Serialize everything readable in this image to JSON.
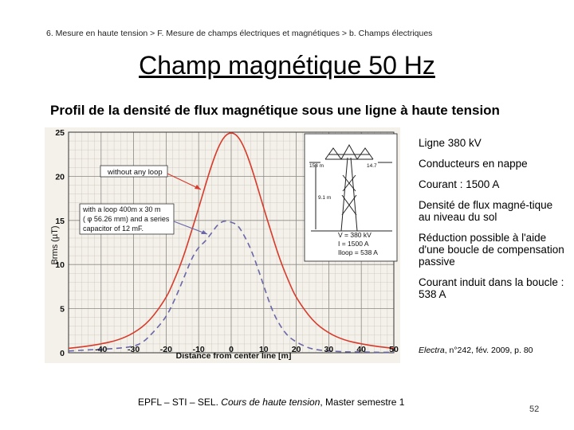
{
  "breadcrumb": "6. Mesure en haute tension > F. Mesure de champs électriques et magnétiques > b. Champs électriques",
  "title": "Champ magnétique 50 Hz",
  "subtitle": "Profil de la densité de flux magnétique sous une ligne à haute tension",
  "side_items": [
    "Ligne 380 kV",
    "Conducteurs en nappe",
    "Courant : 1500 A",
    "Densité de flux magné-tique au niveau du sol",
    "Réduction possible à l'aide d'une boucle de compensation passive",
    "Courant induit dans la boucle : 538 A"
  ],
  "citation": {
    "journal": "Electra",
    "rest": ", n°242, fév. 2009, p. 80"
  },
  "footer": {
    "prefix": "EPFL – STI – SEL. ",
    "course": "Cours de haute tension",
    "suffix": ", Master semestre 1"
  },
  "page_number": "52",
  "chart_data": {
    "type": "line",
    "xlabel": "Distance from center line [m]",
    "ylabel": "Brms (µT)",
    "xlim": [
      -50,
      50
    ],
    "ylim": [
      0,
      25
    ],
    "x_ticks": [
      "-40",
      "-30",
      "-20",
      "-10",
      "0",
      "10",
      "20",
      "30",
      "40",
      "50"
    ],
    "y_ticks": [
      "0",
      "5",
      "10",
      "15",
      "20",
      "25"
    ],
    "grid": true,
    "series": [
      {
        "name": "without any loop",
        "color": "#d83a2a",
        "style": "solid",
        "x": [
          -50,
          -45,
          -40,
          -35,
          -30,
          -25,
          -20,
          -18,
          -15,
          -12,
          -10,
          -8,
          -6,
          -4,
          -2,
          0,
          2,
          4,
          6,
          8,
          10,
          12,
          15,
          18,
          20,
          25,
          30,
          35,
          40,
          45,
          50
        ],
        "y": [
          0.5,
          0.7,
          1.0,
          1.4,
          2.2,
          3.6,
          6.2,
          7.8,
          10.5,
          14.0,
          16.4,
          18.9,
          21.3,
          23.3,
          24.6,
          25.0,
          24.6,
          23.3,
          21.3,
          18.9,
          16.4,
          14.0,
          10.5,
          7.8,
          6.2,
          3.6,
          2.2,
          1.4,
          1.0,
          0.7,
          0.5
        ]
      },
      {
        "name": "with a loop 400m x 30 m (φ 56.26 mm) and a series capacitor of 12 mF.",
        "color": "#6a67a8",
        "style": "dashed",
        "x": [
          -50,
          -45,
          -40,
          -35,
          -30,
          -27,
          -24,
          -20,
          -17,
          -14,
          -12,
          -10,
          -8,
          -6,
          -4,
          -2,
          0,
          2,
          4,
          6,
          8,
          10,
          12,
          14,
          17,
          20,
          24,
          27,
          30,
          35,
          40,
          45,
          50
        ],
        "y": [
          0.2,
          0.3,
          0.4,
          0.5,
          0.7,
          1.2,
          2.3,
          4.0,
          6.3,
          9.0,
          10.8,
          12.0,
          12.6,
          13.6,
          14.6,
          15.0,
          14.8,
          14.5,
          13.3,
          11.8,
          9.8,
          7.6,
          5.4,
          3.7,
          2.0,
          1.2,
          0.5,
          0.3,
          0.2,
          0.1,
          0.1,
          0.05,
          0.05
        ]
      }
    ],
    "annotations": [
      "without any loop",
      "with a loop 400m x 30 m",
      "( φ 56.26 mm) and a series",
      "capacitor of 12 mF."
    ],
    "inset": {
      "labels": [
        "153 m",
        "14.7",
        "9.1 m"
      ],
      "values": [
        "V = 380 kV",
        "I = 1500 A",
        "Iloop = 538 A"
      ]
    }
  }
}
